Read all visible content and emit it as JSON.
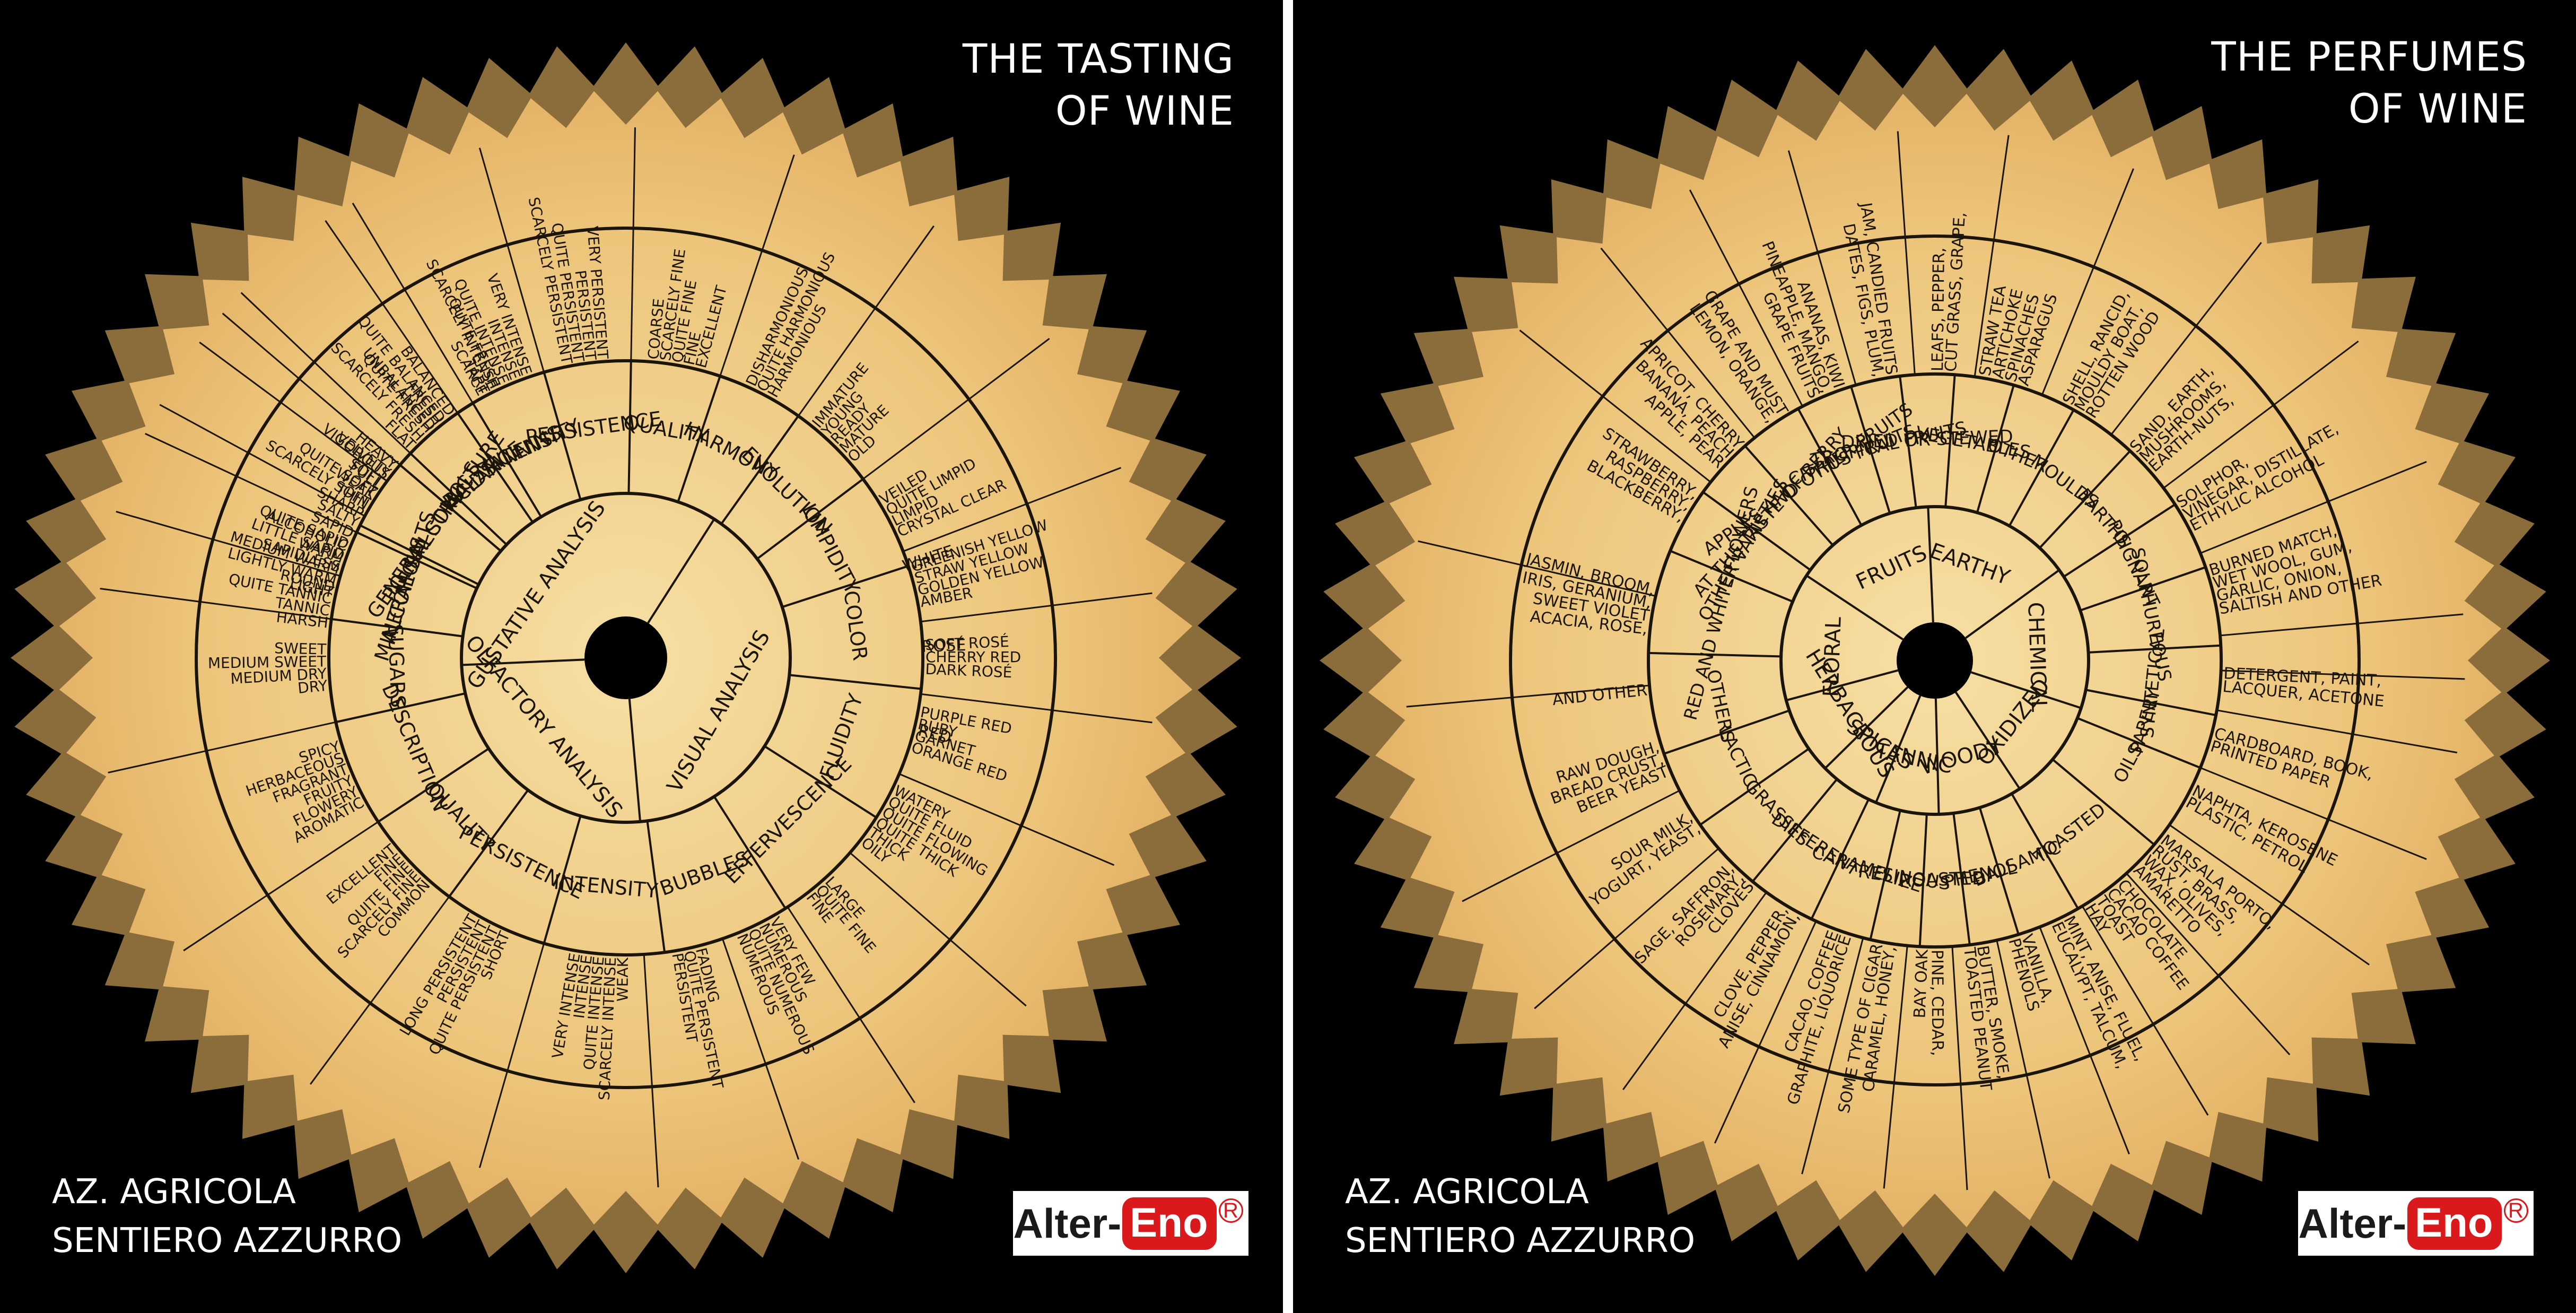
{
  "left": {
    "title_line1": "THE TASTING",
    "title_line2": "OF WINE",
    "footer_line1": "AZ. AGRICOLA",
    "footer_line2": "SENTIERO AZZURRO",
    "logo_alter": "Alter-",
    "logo_eno": "Eno",
    "logo_reg": "R",
    "center": [
      {
        "label": "GUSTATIVE ANALYSIS",
        "angle": -55
      },
      {
        "label": "VISUAL ANALYSIS",
        "angle": 120
      },
      {
        "label": "OLFACTORY ANALYSIS",
        "angle": 230
      }
    ],
    "middle": [
      {
        "label": "MINERAL SALTS",
        "angle": -72
      },
      {
        "label": "GENERAL STRUCTURE",
        "angle": -55
      },
      {
        "label": "BALANCE",
        "angle": -38
      },
      {
        "label": "INTENSITY",
        "angle": -24
      },
      {
        "label": "PERSISTENCE",
        "angle": -8
      },
      {
        "label": "QUALITY",
        "angle": 10
      },
      {
        "label": "HARMONY",
        "angle": 27
      },
      {
        "label": "EVOLUTION",
        "angle": 44
      },
      {
        "label": "LIMPIDITY",
        "angle": 62
      },
      {
        "label": "COLOR",
        "angle": 82
      },
      {
        "label": "FLUIDITY",
        "angle": 110
      },
      {
        "label": "EFFERVESCENCE",
        "angle": 135
      },
      {
        "label": "BUBBLES",
        "angle": 160
      },
      {
        "label": "INTENSITY",
        "angle": 185
      },
      {
        "label": "PERSISTENCE",
        "angle": 207
      },
      {
        "label": "QUALITY",
        "angle": 226
      },
      {
        "label": "DESCRIPTION",
        "angle": 247
      },
      {
        "label": "SUGARS",
        "angle": 268
      },
      {
        "label": "ALCOHOLS",
        "angle": 287
      },
      {
        "label": "POLI-ALCOHOLS",
        "angle": 303
      },
      {
        "label": "ACIDS",
        "angle": 318
      },
      {
        "label": "TANNINS",
        "angle": 333
      }
    ],
    "color_sub": [
      {
        "label": "WHITE",
        "angle": 72
      },
      {
        "label": "ROSÉ",
        "angle": 88
      },
      {
        "label": "RED",
        "angle": 104
      }
    ],
    "outer": [
      {
        "lines": [
          "HARSH",
          "TANNIC",
          "QUITE TANNIC",
          "ROUND"
        ],
        "angle": -80
      },
      {
        "lines": [
          "SAPIDLESS",
          "LITTLE SAPID",
          "QUITE SAPID",
          "SAPID",
          "SALTY"
        ],
        "angle": -68
      },
      {
        "lines": [
          "THIN",
          "WEAK",
          "FULL",
          "VIGOROUS",
          "HEAVY"
        ],
        "angle": -55
      },
      {
        "lines": [
          "UNBALANCED",
          "QUITE BALANCED",
          "BALANCED"
        ],
        "angle": -38
      },
      {
        "lines": [
          "SCARCE",
          "SCARCELY INTENSE",
          "QUITE INTENSE",
          "INTENSE",
          "VERY INTENSE"
        ],
        "angle": -24
      },
      {
        "lines": [
          "SCARCELY PERSISTENT",
          "QUITE PERSISTENT",
          "PERSISTENT",
          "VERY PERSISTENT"
        ],
        "angle": -8
      },
      {
        "lines": [
          "COARSE",
          "SCARCELY FINE",
          "QUITE FINE",
          "FINE",
          "EXCELLENT"
        ],
        "angle": 10
      },
      {
        "lines": [
          "DISHARMONIOUS",
          "QUITE HARMONIOUS",
          "HARMONIOUS"
        ],
        "angle": 27
      },
      {
        "lines": [
          "IMMATURE",
          "YOUNG",
          "READY",
          "MATURE",
          "OLD"
        ],
        "angle": 44
      },
      {
        "lines": [
          "VEILED",
          "QUITE LIMPID",
          "LIMPID",
          "CRYSTAL CLEAR"
        ],
        "angle": 62
      },
      {
        "lines": [
          "GREENISH YELLOW",
          "STRAW YELLOW",
          "GOLDEN YELLOW",
          "AMBER"
        ],
        "angle": 76
      },
      {
        "lines": [
          "SOFT ROSÉ",
          "CHERRY RED",
          "DARK ROSÉ"
        ],
        "angle": 90
      },
      {
        "lines": [
          "PURPLE RED",
          "RUBY",
          "GARNET",
          "ORANGE RED"
        ],
        "angle": 104
      },
      {
        "lines": [
          "WATERY",
          "QUITE FLUID",
          "QUITE FLOWING",
          "QUITE THICK",
          "THICK",
          "OILY"
        ],
        "angle": 122
      },
      {
        "lines": [
          "LARGE",
          "QUITE FINE",
          "FINE"
        ],
        "angle": 140
      },
      {
        "lines": [
          "VERY FEW",
          "NUMEROUS",
          "QUITE NUMEROUS",
          "NUMEROUS"
        ],
        "angle": 154
      },
      {
        "lines": [
          "FADING",
          "QUITE PERSISTENT",
          "PERSISTENT"
        ],
        "angle": 168
      },
      {
        "lines": [
          "WEAK",
          "SCARCELY INTENSE",
          "QUITE INTENSE",
          "INTENSE",
          "VERY INTENSE"
        ],
        "angle": 185
      },
      {
        "lines": [
          "SHORT",
          "QUITE PERSISTENT",
          "PERSISTENT",
          "LONG PERSISTENT"
        ],
        "angle": 207
      },
      {
        "lines": [
          "COMMON",
          "SCARCELY FINE",
          "QUITE FINE",
          "FINE",
          "EXCELLENT"
        ],
        "angle": 226
      },
      {
        "lines": [
          "AROMATIC",
          "FLOWERY",
          "FRUITY",
          "FRAGRANT",
          "HERBACEOUS",
          "SPICY"
        ],
        "angle": 247
      },
      {
        "lines": [
          "DRY",
          "MEDIUM DRY",
          "MEDIUM SWEET",
          "SWEET"
        ],
        "angle": 268
      },
      {
        "lines": [
          "LIGHT",
          "LIGHTLY WARM",
          "MEDIUM WARM",
          "WARM",
          "ALCOHOLIC"
        ],
        "angle": 287
      },
      {
        "lines": [
          "SHARP",
          "SCARCELY SOFT",
          "QUITE SOFT",
          "SOFT",
          "VELVETY"
        ],
        "angle": 303
      },
      {
        "lines": [
          "FLAT",
          "SCARCELY FRESH",
          "QUITE FRESH",
          "FRESH"
        ],
        "angle": 318
      },
      {
        "lines": [
          "TART",
          "QUITE FRESH"
        ],
        "angle": 333
      }
    ]
  },
  "right": {
    "title_line1": "THE PERFUMES",
    "title_line2": "OF WINE",
    "footer_line1": "AZ. AGRICOLA",
    "footer_line2": "SENTIERO AZZURRO",
    "logo_alter": "Alter-",
    "logo_eno": "Eno",
    "logo_reg": "R",
    "center": [
      {
        "label": "FRUITS",
        "angle": -25
      },
      {
        "label": "EARTHY",
        "angle": 20
      },
      {
        "label": "CHEMICAL",
        "angle": 88
      },
      {
        "label": "OXIDIZED",
        "angle": 128
      },
      {
        "label": "WOODY",
        "angle": 165
      },
      {
        "label": "TANNIC",
        "angle": 192
      },
      {
        "label": "SPICES",
        "angle": 213
      },
      {
        "label": "HERBACEOUS",
        "angle": 238
      },
      {
        "label": "FLORAL",
        "angle": 272
      }
    ],
    "middle": [
      {
        "label": "AT THE TASTE OF BERRY",
        "angle": -48
      },
      {
        "label": "APPLES AND OTHER FRUITS",
        "angle": -35
      },
      {
        "label": "CITRUS FRUITS",
        "angle": -22
      },
      {
        "label": "TROPICAL FRUITS",
        "angle": -12
      },
      {
        "label": "DRIED OR STEWED",
        "angle": -2
      },
      {
        "label": "VEGETABLES",
        "angle": 10
      },
      {
        "label": "OTHER",
        "angle": 22
      },
      {
        "label": "MOULDS",
        "angle": 36
      },
      {
        "label": "EARTHS",
        "angle": 50
      },
      {
        "label": "POIGNANT",
        "angle": 64
      },
      {
        "label": "SOLPHUREOUS",
        "angle": 78
      },
      {
        "label": "SYNTETICAL",
        "angle": 96
      },
      {
        "label": "PAPERY",
        "angle": 106
      },
      {
        "label": "OILS",
        "angle": 118
      },
      {
        "label": "TOASTED",
        "angle": 142
      },
      {
        "label": "BALSAMIC",
        "angle": 158
      },
      {
        "label": "PHENOL",
        "angle": 168
      },
      {
        "label": "ROASTED",
        "angle": 178
      },
      {
        "label": "RESINOUS",
        "angle": 188
      },
      {
        "label": "CARAMELIZE",
        "angle": 198
      },
      {
        "label": "DIFFERENT",
        "angle": 213
      },
      {
        "label": "GRASSES",
        "angle": 226
      },
      {
        "label": "LACTIC",
        "angle": 244
      },
      {
        "label": "OTHERS",
        "angle": 258
      },
      {
        "label": "RED AND WHITE FLOWERS",
        "angle": 285
      },
      {
        "label": "OTHER VARIETIES",
        "angle": 300
      }
    ],
    "outer": [
      {
        "lines": [
          "BLACKBERRY,",
          "RASPBERRY,",
          "STRAWBERRY,"
        ],
        "angle": -58
      },
      {
        "lines": [
          "APPLE, PEAR",
          "BANANA, PEACH",
          "APRICOT, CHERRY"
        ],
        "angle": -45
      },
      {
        "lines": [
          "LEMON, ORANGE,",
          "GRAPE AND MUST"
        ],
        "angle": -33
      },
      {
        "lines": [
          "GRAPE FRUITS",
          "PINEAPPLE, MANGO,",
          "ANANAS, KIWI"
        ],
        "angle": -22
      },
      {
        "lines": [
          "DATES, FIGS, PLUM,",
          "JAM, CANDIED FRUITS"
        ],
        "angle": -10
      },
      {
        "lines": [
          "LEAFS, PEPPER,",
          "CUT GRASS, GRAPE,"
        ],
        "angle": 2
      },
      {
        "lines": [
          "STRAW TEA",
          "ARTICHOKE",
          "SPINACHES",
          "ASPARAGUS"
        ],
        "angle": 14
      },
      {
        "lines": [
          "SHELL, RANCID,",
          "MOULDY BOAT,",
          "ROTTEN WOOD"
        ],
        "angle": 30
      },
      {
        "lines": [
          "SAND, EARTH,",
          "MUSHROOMS,",
          "EARTH-NUTS,"
        ],
        "angle": 46
      },
      {
        "lines": [
          "SOLPHOR,",
          "VINEGAR, DISTILLATE,",
          "ETHYLIC ALCOHOL"
        ],
        "angle": 60
      },
      {
        "lines": [
          "BURNED MATCH,",
          "WET WOOL, GUM,",
          "GARLIC, ONION,",
          "SALTISH AND OTHER"
        ],
        "angle": 76
      },
      {
        "lines": [
          "DETERGENT, PAINT,",
          "LACQUER, ACETONE"
        ],
        "angle": 94
      },
      {
        "lines": [
          "CARDBOARD, BOOK,",
          "PRINTED PAPER"
        ],
        "angle": 106
      },
      {
        "lines": [
          "NAPHTA, KEROSENE",
          "PLASTIC, PETROL"
        ],
        "angle": 118
      },
      {
        "lines": [
          "MARSALA PORTO,",
          "RUST, BRASS,",
          "WAX, OLIVES,",
          "AMARETTO"
        ],
        "angle": 132
      },
      {
        "lines": [
          "CHOCOLATE",
          "CACAO COFFEE",
          "TOAST",
          "HAY"
        ],
        "angle": 144
      },
      {
        "lines": [
          "MINT, ANISE, FLUEL,",
          "EUCALYPT, TALCUM,"
        ],
        "angle": 154
      },
      {
        "lines": [
          "VANILLA,",
          "PHENOLS"
        ],
        "angle": 163
      },
      {
        "lines": [
          "BUTTER, SMOKE,",
          "TOASTED PEANUT"
        ],
        "angle": 172
      },
      {
        "lines": [
          "PINE, CEDAR,",
          "BAY OAK"
        ],
        "angle": 181
      },
      {
        "lines": [
          "CARAMEL, HONEY,",
          "SOME TYPE OF CIGAR"
        ],
        "angle": 190
      },
      {
        "lines": [
          "GRAPHITE, LIQUORICE",
          "CACAO, COFFEE"
        ],
        "angle": 199
      },
      {
        "lines": [
          "ANISE, CINNAMON,",
          "CLOVE, PEPPER,"
        ],
        "angle": 210
      },
      {
        "lines": [
          "CLOVES",
          "ROSEMARY,",
          "SAGE, SAFFRON,"
        ],
        "angle": 222
      },
      {
        "lines": [
          "YOGURT, YEAST,",
          "SOUR MILK,"
        ],
        "angle": 236
      },
      {
        "lines": [
          "BEER YEAST",
          "BREAD CRUST,",
          "RAW DOUGH,"
        ],
        "angle": 250
      },
      {
        "lines": [
          "ACACIA, ROSE,",
          "SWEET VIOLET",
          "IRIS, GERANIUM,",
          "JASMIN, BROOM,"
        ],
        "angle": 280
      },
      {
        "lines": [
          "AND OTHER"
        ],
        "angle": 264
      }
    ]
  }
}
